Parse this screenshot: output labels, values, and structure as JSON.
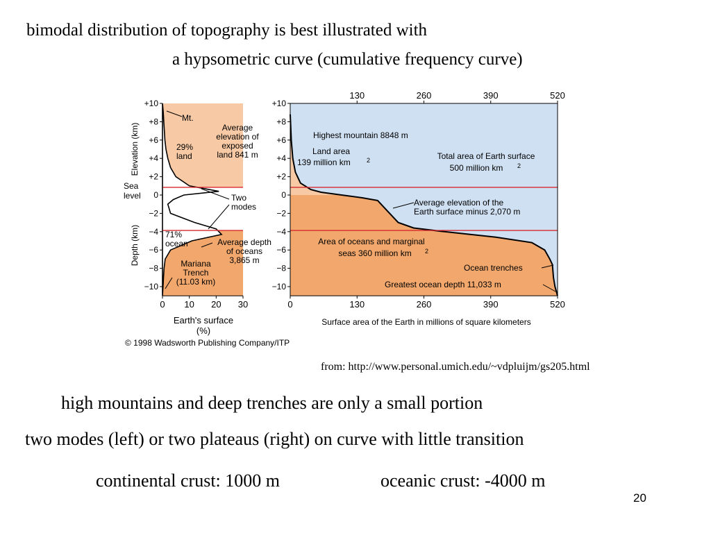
{
  "slide": {
    "title_line1": "bimodal distribution of topography is best illustrated with",
    "title_line2": "a hypsometric curve (cumulative frequency curve)",
    "source": "from: http://www.personal.umich.edu/~vdpluijm/gs205.html",
    "bullet1": "high mountains and deep trenches are only a small portion",
    "bullet2": "two modes (left) or two plateaus (right) on curve with little transition",
    "bullet3a": "continental crust: 1000 m",
    "bullet3b": "oceanic crust: -4000 m",
    "page_number": "20"
  },
  "colors": {
    "land": "#f7c9a4",
    "ocean_fill": "#f2a86c",
    "water": "#cfe0f2",
    "red_line": "#d6282f"
  },
  "chart_data": [
    {
      "type": "area",
      "name_role": "frequency-distribution",
      "ylabel_top": "Elevation (km)",
      "ylabel_bottom": "Depth (km)",
      "sea_level_label": [
        "Sea",
        "level"
      ],
      "xlabel": [
        "Earth's surface",
        "(%)"
      ],
      "x_ticks": [
        "0",
        "10",
        "20",
        "30"
      ],
      "y_ticks": [
        "+10",
        "+8",
        "+6",
        "+4",
        "+2",
        "0",
        "−2",
        "−4",
        "−6",
        "−8",
        "−10"
      ],
      "xlim": [
        0,
        30
      ],
      "ylim": [
        -11,
        10
      ],
      "frequency": [
        {
          "y": 10,
          "x": 0
        },
        {
          "y": 9,
          "x": 0.3
        },
        {
          "y": 8,
          "x": 0.5
        },
        {
          "y": 7,
          "x": 0.7
        },
        {
          "y": 6,
          "x": 0.9
        },
        {
          "y": 5,
          "x": 1.3
        },
        {
          "y": 4,
          "x": 2
        },
        {
          "y": 3,
          "x": 3
        },
        {
          "y": 2,
          "x": 5
        },
        {
          "y": 1,
          "x": 10
        },
        {
          "y": 0.4,
          "x": 21
        },
        {
          "y": 0,
          "x": 8
        },
        {
          "y": -0.5,
          "x": 4
        },
        {
          "y": -1,
          "x": 2
        },
        {
          "y": -2,
          "x": 3
        },
        {
          "y": -3,
          "x": 12
        },
        {
          "y": -3.7,
          "x": 20
        },
        {
          "y": -4.3,
          "x": 22
        },
        {
          "y": -5,
          "x": 11
        },
        {
          "y": -6,
          "x": 3
        },
        {
          "y": -7,
          "x": 1
        },
        {
          "y": -8,
          "x": 0.6
        },
        {
          "y": -9,
          "x": 0.4
        },
        {
          "y": -10,
          "x": 0.2
        },
        {
          "y": -11,
          "x": 0
        }
      ],
      "annotations": {
        "mt": "Mt.",
        "avg_land": [
          "Average",
          "elevation of",
          "exposed",
          "land 841 m"
        ],
        "land_pct": [
          "29%",
          "land"
        ],
        "two_modes": [
          "Two",
          "modes"
        ],
        "ocean_pct": [
          "71%",
          "ocean"
        ],
        "avg_ocean": [
          "Average depth",
          "of oceans",
          "3,865 m"
        ],
        "trench": [
          "Mariana",
          "Trench",
          "(11.03 km)"
        ]
      }
    },
    {
      "type": "area",
      "name_role": "hypsometric-curve",
      "xlabel": "Surface area of the Earth in millions of square kilometers",
      "x_ticks": [
        "0",
        "130",
        "260",
        "390",
        "520"
      ],
      "x_ticks_top": [
        "130",
        "260",
        "390",
        "520"
      ],
      "y_ticks": [
        "+10",
        "+8",
        "+6",
        "+4",
        "+2",
        "0",
        "−2",
        "−4",
        "−6",
        "−8",
        "−10"
      ],
      "xlim": [
        0,
        520
      ],
      "ylim": [
        -11,
        10
      ],
      "curve": [
        {
          "x": 0,
          "y": 8.8
        },
        {
          "x": 2,
          "y": 6
        },
        {
          "x": 5,
          "y": 4
        },
        {
          "x": 10,
          "y": 2.5
        },
        {
          "x": 20,
          "y": 1.3
        },
        {
          "x": 40,
          "y": 0.6
        },
        {
          "x": 60,
          "y": 0.3
        },
        {
          "x": 100,
          "y": 0
        },
        {
          "x": 140,
          "y": -0.3
        },
        {
          "x": 170,
          "y": -0.6
        },
        {
          "x": 190,
          "y": -1.8
        },
        {
          "x": 210,
          "y": -3
        },
        {
          "x": 240,
          "y": -3.6
        },
        {
          "x": 300,
          "y": -4
        },
        {
          "x": 400,
          "y": -4.6
        },
        {
          "x": 470,
          "y": -5.2
        },
        {
          "x": 495,
          "y": -6
        },
        {
          "x": 505,
          "y": -7
        },
        {
          "x": 510,
          "y": -7.6
        },
        {
          "x": 512,
          "y": -9
        },
        {
          "x": 515,
          "y": -10
        },
        {
          "x": 520,
          "y": -11
        }
      ],
      "reference_lines": [
        {
          "y": 0.84
        },
        {
          "y": -3.865
        }
      ],
      "annotations": {
        "highest": "Highest mountain 8848 m",
        "land_area": [
          "Land area",
          "139 million km",
          "2"
        ],
        "total_area": [
          "Total area of Earth surface",
          "500 million km",
          "2"
        ],
        "avg_elev": [
          "Average elevation of the",
          "Earth surface minus 2,070 m"
        ],
        "ocean_area": [
          "Area of oceans and marginal",
          "seas 360 million km",
          "2"
        ],
        "trenches": "Ocean trenches",
        "greatest": "Greatest ocean depth 11,033 m"
      }
    }
  ],
  "copyright": "© 1998 Wadsworth Publishing Company/ITP"
}
